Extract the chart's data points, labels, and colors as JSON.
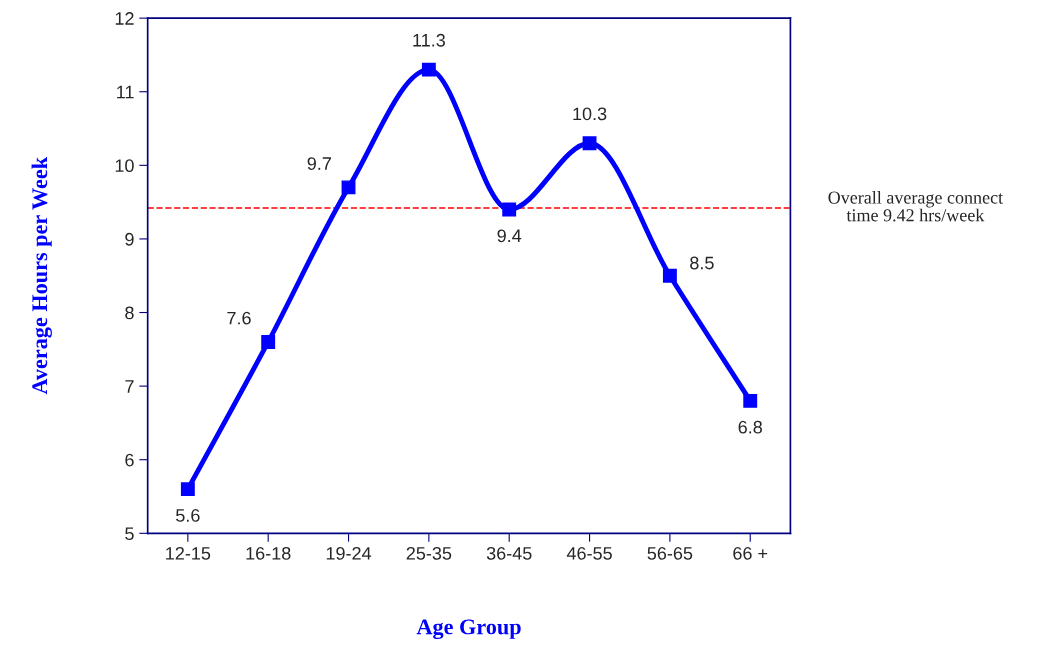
{
  "chart_data": {
    "type": "line",
    "xlabel": "Age Group",
    "ylabel": "Average Hours per Week",
    "categories": [
      "12-15",
      "16-18",
      "19-24",
      "25-35",
      "36-45",
      "46-55",
      "56-65",
      "66 +"
    ],
    "series": [
      {
        "color": "#0000ff",
        "values": [
          5.6,
          7.6,
          9.7,
          11.3,
          9.4,
          10.3,
          8.5,
          6.8
        ]
      }
    ],
    "ylim": [
      5,
      12
    ],
    "yticks": [
      5,
      6,
      7,
      8,
      9,
      10,
      11,
      12
    ],
    "marker": "square",
    "line_style": "solid",
    "data_labels": true,
    "grid": false,
    "legend": false,
    "ref_lines": [
      {
        "axis": "y",
        "value": 9.42,
        "label": "Overall average connect time 9.42 hrs/week",
        "color": "#ff0000",
        "line_style": "dashed"
      }
    ]
  }
}
